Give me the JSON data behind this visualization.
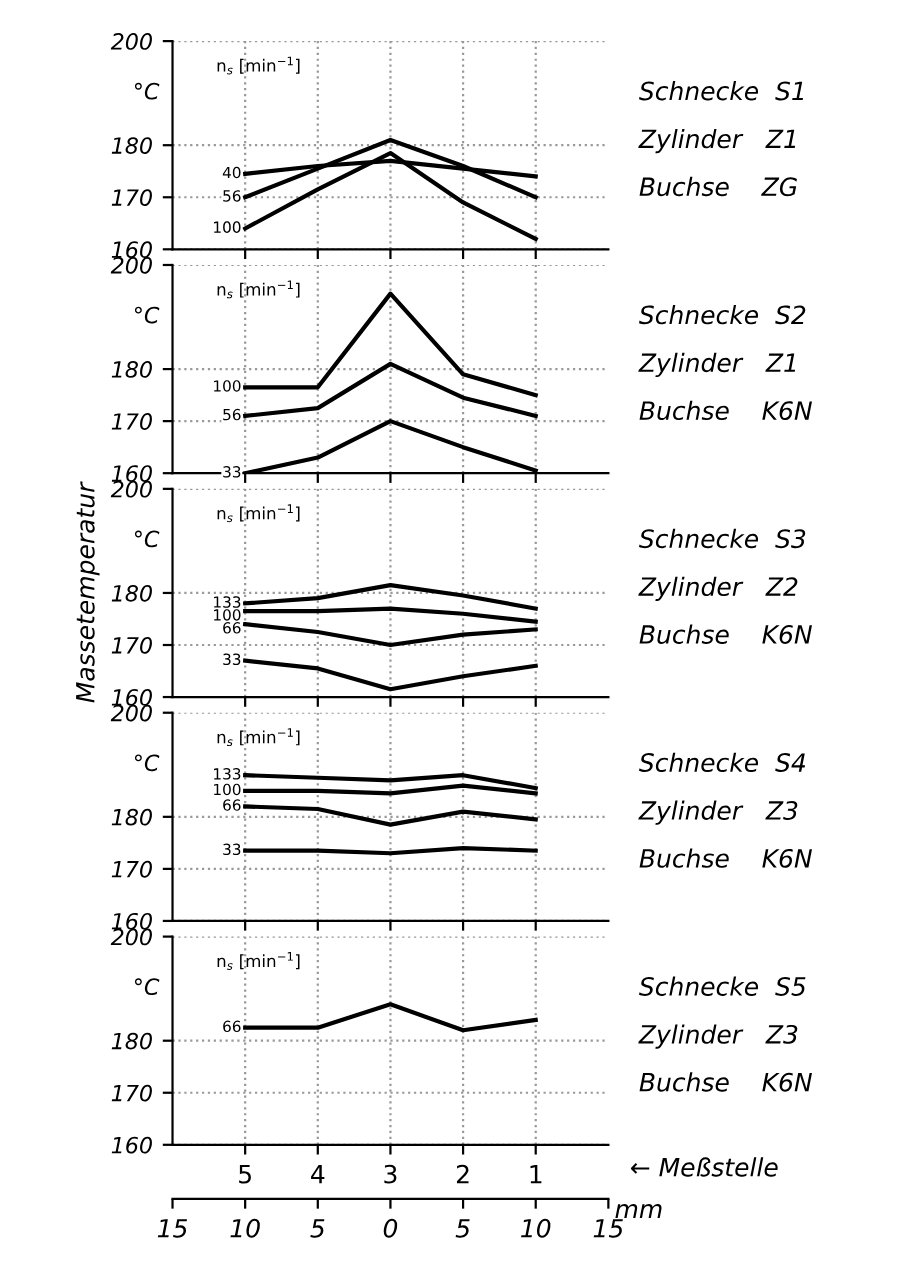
{
  "chart_data": [
    {
      "type": "line",
      "categories": [
        "5",
        "4",
        "3",
        "2",
        "1"
      ],
      "ylim": [
        160,
        200
      ],
      "yticks": [
        160,
        170,
        180,
        200
      ],
      "tick_labels": "y",
      "grid": true,
      "marker": "none",
      "line_style": "solid",
      "annotations": [
        "°C",
        "n$_{s}$ [min$^{−1}$]",
        "Schnecke  S1",
        "Zylinder   Z1",
        "Buchse    ZG"
      ],
      "series": [
        {
          "name": "40",
          "color": "#000000",
          "values": [
            174.5,
            176,
            177,
            175.5,
            174
          ]
        },
        {
          "name": "56",
          "color": "#000000",
          "values": [
            170,
            175.5,
            181,
            176,
            170
          ]
        },
        {
          "name": "100",
          "color": "#000000",
          "values": [
            164,
            171.5,
            178.5,
            169,
            162
          ]
        }
      ]
    },
    {
      "type": "line",
      "categories": [
        "5",
        "4",
        "3",
        "2",
        "1"
      ],
      "ylim": [
        160,
        200
      ],
      "yticks": [
        160,
        170,
        180,
        200
      ],
      "tick_labels": "y",
      "grid": true,
      "marker": "none",
      "line_style": "solid",
      "annotations": [
        "°C",
        "n$_{s}$ [min$^{−1}$]",
        "Schnecke  S2",
        "Zylinder   Z1",
        "Buchse    K6N"
      ],
      "series": [
        {
          "name": "100",
          "color": "#000000",
          "values": [
            176.5,
            176.5,
            194.5,
            179,
            175
          ]
        },
        {
          "name": "56",
          "color": "#000000",
          "values": [
            171,
            172.5,
            181,
            174.5,
            171
          ]
        },
        {
          "name": "33",
          "color": "#000000",
          "values": [
            160,
            163,
            170,
            165,
            160.5
          ]
        }
      ]
    },
    {
      "type": "line",
      "categories": [
        "5",
        "4",
        "3",
        "2",
        "1"
      ],
      "ylim": [
        160,
        200
      ],
      "yticks": [
        160,
        170,
        180,
        200
      ],
      "tick_labels": "y",
      "grid": true,
      "marker": "none",
      "line_style": "solid",
      "ylabel": "Massetemperatur",
      "annotations": [
        "°C",
        "n$_{s}$ [min$^{−1}$]",
        "Schnecke  S3",
        "Zylinder   Z2",
        "Buchse    K6N"
      ],
      "series": [
        {
          "name": "133",
          "color": "#000000",
          "values": [
            178,
            179,
            181.5,
            179.5,
            177
          ]
        },
        {
          "name": "100",
          "color": "#000000",
          "values": [
            176.5,
            176.5,
            177,
            176,
            174.5
          ]
        },
        {
          "name": "66",
          "color": "#000000",
          "values": [
            174,
            172.5,
            170,
            172,
            173
          ]
        },
        {
          "name": "33",
          "color": "#000000",
          "values": [
            167,
            165.5,
            161.5,
            164,
            166
          ]
        }
      ]
    },
    {
      "type": "line",
      "categories": [
        "5",
        "4",
        "3",
        "2",
        "1"
      ],
      "ylim": [
        160,
        200
      ],
      "yticks": [
        160,
        170,
        180,
        200
      ],
      "tick_labels": "y",
      "grid": true,
      "marker": "none",
      "line_style": "solid",
      "annotations": [
        "°C",
        "n$_{s}$ [min$^{−1}$]",
        "Schnecke  S4",
        "Zylinder   Z3",
        "Buchse    K6N"
      ],
      "series": [
        {
          "name": "133",
          "color": "#000000",
          "values": [
            188,
            187.5,
            187,
            188,
            185.5
          ]
        },
        {
          "name": "100",
          "color": "#000000",
          "values": [
            185,
            185,
            184.5,
            186,
            184.5
          ]
        },
        {
          "name": "66",
          "color": "#000000",
          "values": [
            182,
            181.5,
            178.5,
            181,
            179.5
          ]
        },
        {
          "name": "33",
          "color": "#000000",
          "values": [
            173.5,
            173.5,
            173,
            174,
            173.5
          ]
        }
      ]
    },
    {
      "type": "line",
      "categories": [
        "5",
        "4",
        "3",
        "2",
        "1"
      ],
      "ylim": [
        160,
        200
      ],
      "yticks": [
        160,
        170,
        180,
        200
      ],
      "grid": true,
      "marker": "none",
      "line_style": "solid",
      "xlabel": "← Meßstelle",
      "x2lim": [
        -15,
        15
      ],
      "x2ticks": [
        {
          "value": -15,
          "label": "15"
        },
        {
          "value": -10,
          "label": "10"
        },
        {
          "value": -5,
          "label": "5"
        },
        0,
        5,
        10,
        15
      ],
      "x2label": "mm",
      "annotations": [
        "°C",
        "n$_{s}$ [min$^{−1}$]",
        "Schnecke  S5",
        "Zylinder   Z3",
        "Buchse    K6N"
      ],
      "series": [
        {
          "name": "66",
          "color": "#000000",
          "values": [
            182.5,
            182.5,
            187,
            182,
            184
          ]
        }
      ]
    }
  ]
}
